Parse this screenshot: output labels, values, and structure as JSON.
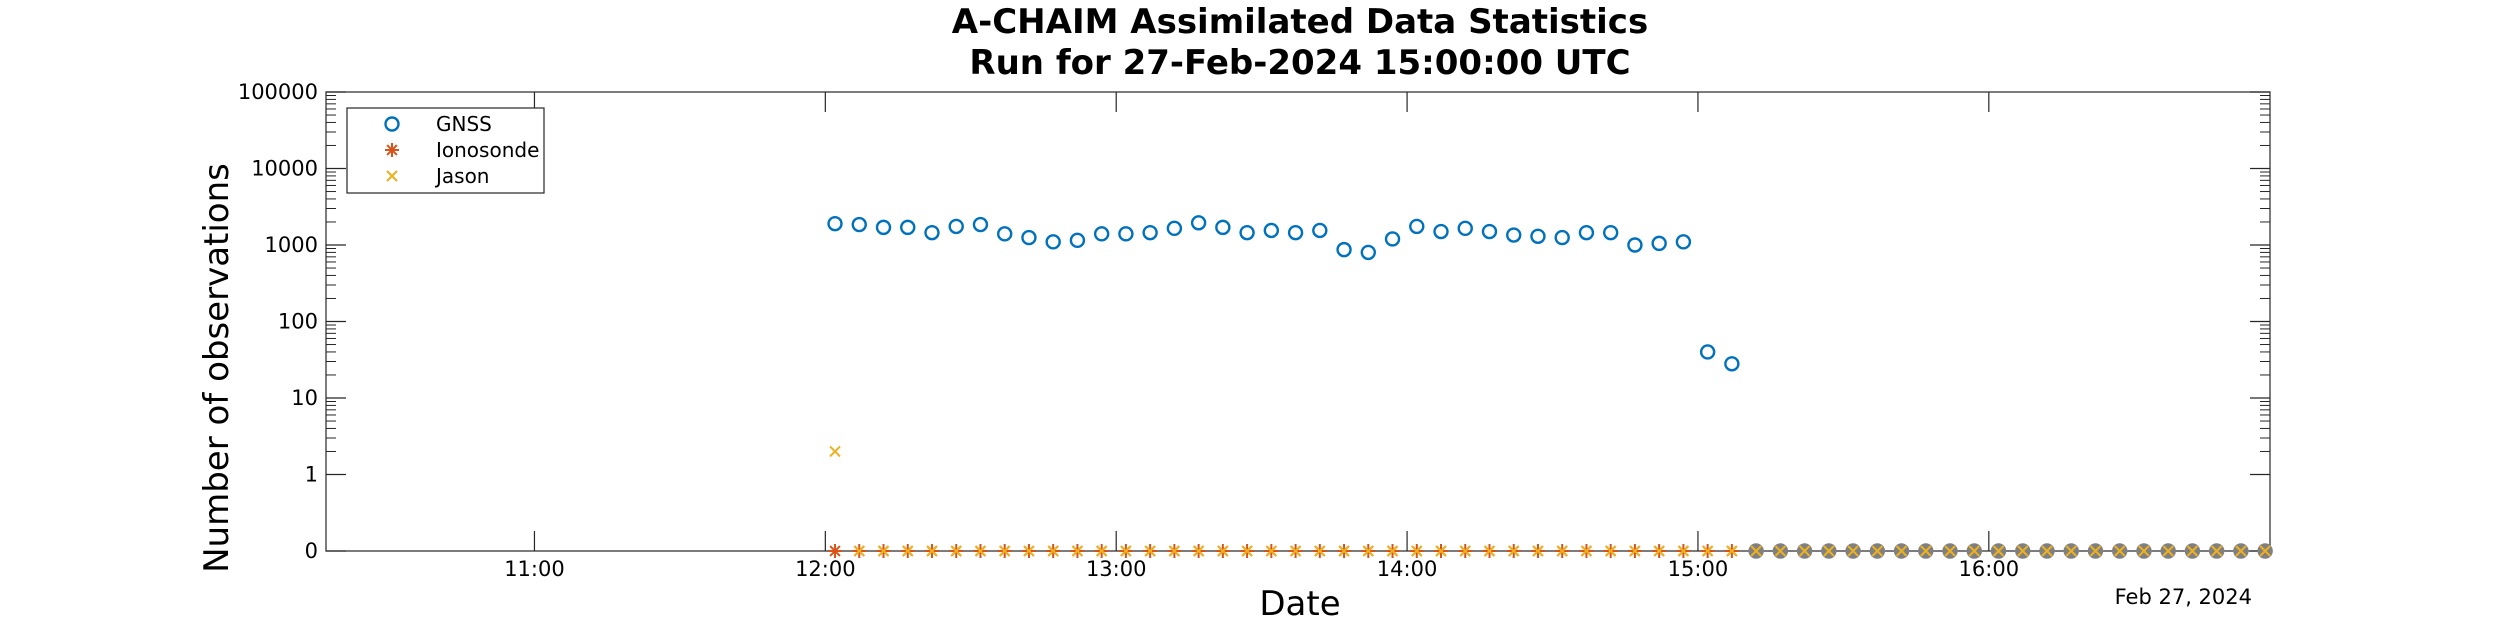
{
  "chart_data": {
    "type": "scatter",
    "title": [
      "A-CHAIM Assimilated Data Statistics",
      "Run for 27-Feb-2024 15:00:00 UTC"
    ],
    "xlabel": "Date",
    "ylabel": "Number of observations",
    "x_axis_date_label": "Feb 27, 2024",
    "x_ticks": [
      "11:00",
      "12:00",
      "13:00",
      "14:00",
      "15:00",
      "16:00"
    ],
    "x_range": [
      "10:17",
      "16:58"
    ],
    "y_scale": "log with zero",
    "y_ticks": [
      "0",
      "1",
      "10",
      "100",
      "1000",
      "10000",
      "100000"
    ],
    "grid": false,
    "legend_position": "top-left",
    "colors": {
      "gnss": "#0072BD",
      "ionosonde": "#D95319",
      "jason": "#EDB120",
      "future": "#808080"
    },
    "series": [
      {
        "name": "GNSS",
        "marker": "circle",
        "x": [
          "12:02",
          "12:07",
          "12:12",
          "12:17",
          "12:22",
          "12:27",
          "12:32",
          "12:37",
          "12:42",
          "12:47",
          "12:52",
          "12:57",
          "13:02",
          "13:07",
          "13:12",
          "13:17",
          "13:22",
          "13:27",
          "13:32",
          "13:37",
          "13:42",
          "13:47",
          "13:52",
          "13:57",
          "14:02",
          "14:07",
          "14:12",
          "14:17",
          "14:22",
          "14:27",
          "14:32",
          "14:37",
          "14:42",
          "14:47",
          "14:52",
          "14:57",
          "15:02",
          "15:07",
          "15:12",
          "15:17",
          "15:22",
          "15:27",
          "15:32",
          "15:37",
          "15:42",
          "15:47",
          "15:52",
          "15:57",
          "16:02",
          "16:07",
          "16:12",
          "16:17",
          "16:22",
          "16:27",
          "16:32",
          "16:37",
          "16:42",
          "16:47",
          "16:52",
          "16:57"
        ],
        "y": [
          1900,
          1850,
          1700,
          1700,
          1450,
          1750,
          1850,
          1400,
          1250,
          1100,
          1150,
          1400,
          1400,
          1450,
          1650,
          1950,
          1700,
          1450,
          1550,
          1450,
          1550,
          870,
          800,
          1200,
          1750,
          1500,
          1650,
          1500,
          1350,
          1300,
          1250,
          1450,
          1450,
          1000,
          1050,
          1100,
          40,
          28,
          0,
          0,
          0,
          0,
          0,
          0,
          0,
          0,
          0,
          0,
          0,
          0,
          0,
          0,
          0,
          0,
          0,
          0,
          0,
          0,
          0,
          0
        ]
      },
      {
        "name": "Ionosonde",
        "marker": "asterisk",
        "x": [
          "12:02",
          "12:07",
          "12:12",
          "12:17",
          "12:22",
          "12:27",
          "12:32",
          "12:37",
          "12:42",
          "12:47",
          "12:52",
          "12:57",
          "13:02",
          "13:07",
          "13:12",
          "13:17",
          "13:22",
          "13:27",
          "13:32",
          "13:37",
          "13:42",
          "13:47",
          "13:52",
          "13:57",
          "14:02",
          "14:07",
          "14:12",
          "14:17",
          "14:22",
          "14:27",
          "14:32",
          "14:37",
          "14:42",
          "14:47",
          "14:52",
          "14:57",
          "15:02",
          "15:07",
          "15:12",
          "15:17",
          "15:22",
          "15:27",
          "15:32",
          "15:37",
          "15:42",
          "15:47",
          "15:52",
          "15:57",
          "16:02",
          "16:07",
          "16:12",
          "16:17",
          "16:22",
          "16:27",
          "16:32",
          "16:37",
          "16:42",
          "16:47",
          "16:52",
          "16:57"
        ],
        "y": [
          0,
          0,
          0,
          0,
          0,
          0,
          0,
          0,
          0,
          0,
          0,
          0,
          0,
          0,
          0,
          0,
          0,
          0,
          0,
          0,
          0,
          0,
          0,
          0,
          0,
          0,
          0,
          0,
          0,
          0,
          0,
          0,
          0,
          0,
          0,
          0,
          0,
          0,
          0,
          0,
          0,
          0,
          0,
          0,
          0,
          0,
          0,
          0,
          0,
          0,
          0,
          0,
          0,
          0,
          0,
          0,
          0,
          0,
          0,
          0
        ]
      },
      {
        "name": "Jason",
        "marker": "x",
        "x": [
          "12:02",
          "12:07",
          "12:12",
          "12:17",
          "12:22",
          "12:27",
          "12:32",
          "12:37",
          "12:42",
          "12:47",
          "12:52",
          "12:57",
          "13:02",
          "13:07",
          "13:12",
          "13:17",
          "13:22",
          "13:27",
          "13:32",
          "13:37",
          "13:42",
          "13:47",
          "13:52",
          "13:57",
          "14:02",
          "14:07",
          "14:12",
          "14:17",
          "14:22",
          "14:27",
          "14:32",
          "14:37",
          "14:42",
          "14:47",
          "14:52",
          "14:57",
          "15:02",
          "15:07",
          "15:12",
          "15:17",
          "15:22",
          "15:27",
          "15:32",
          "15:37",
          "15:42",
          "15:47",
          "15:52",
          "15:57",
          "16:02",
          "16:07",
          "16:12",
          "16:17",
          "16:22",
          "16:27",
          "16:32",
          "16:37",
          "16:42",
          "16:47",
          "16:52",
          "16:57"
        ],
        "y": [
          2,
          0,
          0,
          0,
          0,
          0,
          0,
          0,
          0,
          0,
          0,
          0,
          0,
          0,
          0,
          0,
          0,
          0,
          0,
          0,
          0,
          0,
          0,
          0,
          0,
          0,
          0,
          0,
          0,
          0,
          0,
          0,
          0,
          0,
          0,
          0,
          0,
          0,
          0,
          0,
          0,
          0,
          0,
          0,
          0,
          0,
          0,
          0,
          0,
          0,
          0,
          0,
          0,
          0,
          0,
          0,
          0,
          0,
          0,
          0
        ]
      }
    ]
  }
}
